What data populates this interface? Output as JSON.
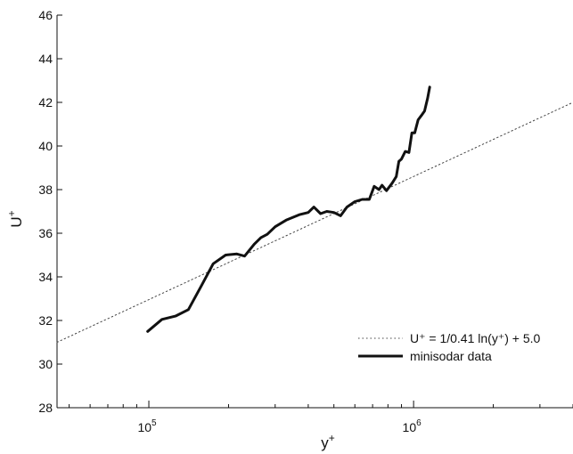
{
  "chart_data": {
    "type": "line",
    "title": "",
    "xlabel": {
      "base": "y",
      "sup": "+"
    },
    "ylabel": {
      "base": "U",
      "sup": "+"
    },
    "xscale": "log",
    "xlim": [
      45000,
      4000000
    ],
    "ylim": [
      28,
      46
    ],
    "grid": false,
    "legend_position": "bottom-right",
    "yticks": [
      {
        "value": 28,
        "label": "28"
      },
      {
        "value": 30,
        "label": "30"
      },
      {
        "value": 32,
        "label": "32"
      },
      {
        "value": 34,
        "label": "34"
      },
      {
        "value": 36,
        "label": "36"
      },
      {
        "value": 38,
        "label": "38"
      },
      {
        "value": 40,
        "label": "40"
      },
      {
        "value": 42,
        "label": "42"
      },
      {
        "value": 44,
        "label": "44"
      },
      {
        "value": 46,
        "label": "46"
      }
    ],
    "xticks_major": [
      {
        "value": 100000,
        "base": "10",
        "exp": "5"
      },
      {
        "value": 1000000,
        "base": "10",
        "exp": "6"
      }
    ],
    "series": [
      {
        "name": "U⁺ = 1/0.41 ln(y⁺) + 5.0",
        "style": "dotted",
        "color": "#444444",
        "x": [
          45000,
          4000000
        ],
        "y": [
          31.0,
          42.0
        ]
      },
      {
        "name": "minisodar data",
        "style": "solid",
        "color": "#111111",
        "x": [
          99000,
          112000,
          126000,
          141000,
          158000,
          175000,
          195000,
          215000,
          230000,
          250000,
          265000,
          280000,
          300000,
          330000,
          370000,
          400000,
          420000,
          445000,
          470000,
          500000,
          530000,
          560000,
          600000,
          640000,
          680000,
          710000,
          740000,
          760000,
          790000,
          830000,
          860000,
          880000,
          900000,
          930000,
          960000,
          985000,
          1010000,
          1040000,
          1070000,
          1100000,
          1130000,
          1150000
        ],
        "y": [
          31.5,
          32.05,
          32.2,
          32.5,
          33.6,
          34.6,
          35.0,
          35.05,
          34.95,
          35.5,
          35.8,
          35.95,
          36.3,
          36.6,
          36.85,
          36.95,
          37.2,
          36.9,
          37.0,
          36.95,
          36.8,
          37.2,
          37.45,
          37.55,
          37.55,
          38.15,
          38.0,
          38.2,
          37.95,
          38.3,
          38.6,
          39.3,
          39.4,
          39.75,
          39.7,
          40.6,
          40.6,
          41.2,
          41.4,
          41.6,
          42.2,
          42.7
        ]
      }
    ]
  }
}
